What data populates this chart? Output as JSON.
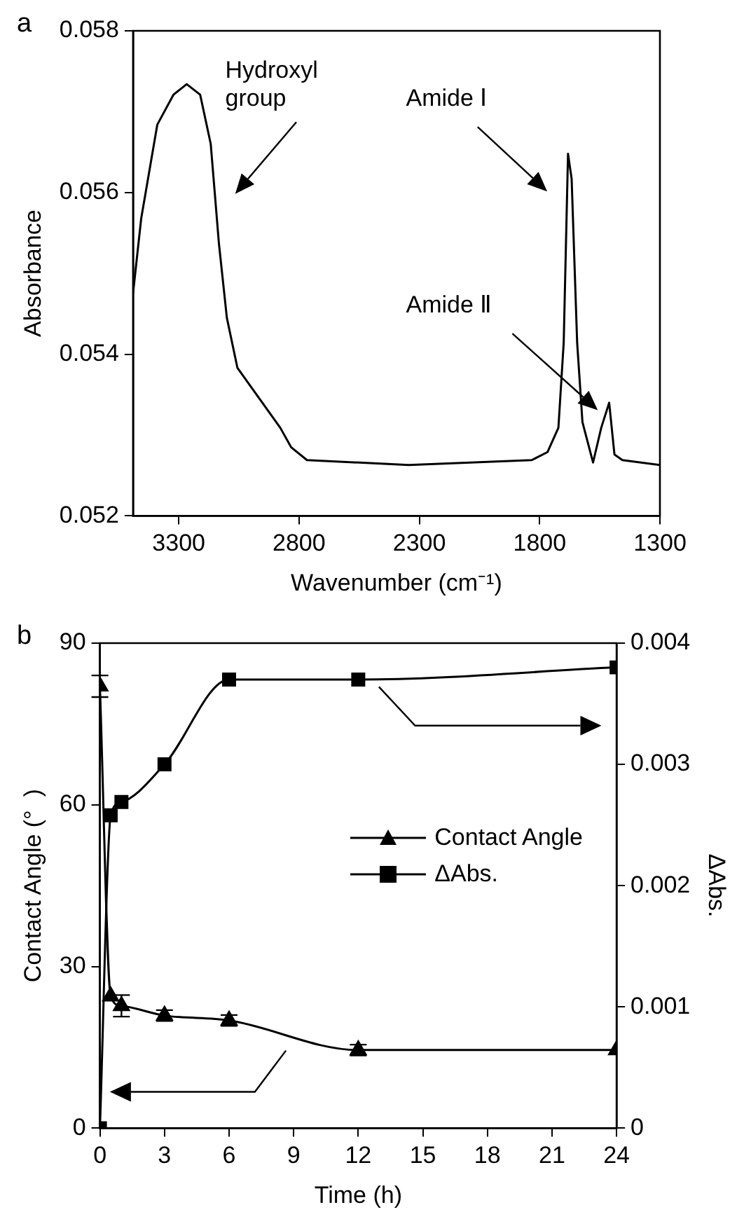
{
  "chart_data": [
    {
      "type": "line",
      "title": "a",
      "xlabel": "Wavenumber (cm⁻¹)",
      "ylabel": "Absorbance",
      "xlim": [
        3490,
        1300
      ],
      "xticks": [
        3300,
        2800,
        2300,
        1800,
        1300
      ],
      "ylim": [
        0.052,
        0.058
      ],
      "yticks": [
        0.052,
        0.054,
        0.056,
        0.058
      ],
      "grid": false,
      "legend": false,
      "x": [
        3490,
        3456,
        3389,
        3322,
        3267,
        3211,
        3167,
        3133,
        3100,
        3056,
        2967,
        2878,
        2833,
        2767,
        2344,
        1833,
        1767,
        1722,
        1700,
        1682,
        1667,
        1644,
        1622,
        1578,
        1544,
        1511,
        1489,
        1456,
        1300
      ],
      "series": [
        {
          "color": "#000000",
          "values": [
            0.05475,
            0.05568,
            0.05684,
            0.05721,
            0.05734,
            0.05721,
            0.0566,
            0.05537,
            0.05445,
            0.05383,
            0.05346,
            0.05309,
            0.05285,
            0.05269,
            0.05263,
            0.05269,
            0.05279,
            0.05309,
            0.05414,
            0.05648,
            0.05617,
            0.05414,
            0.05316,
            0.05266,
            0.05309,
            0.0534,
            0.05276,
            0.05269,
            0.05263
          ]
        }
      ],
      "annotations": [
        "Hydroxyl group",
        "Amide Ⅰ",
        "Amide Ⅱ"
      ]
    },
    {
      "type": "line",
      "title": "b",
      "xlabel": "Time (h)",
      "ylabel": "Contact Angle (°  )",
      "y2label": "ΔAbs.",
      "xlim": [
        0,
        24
      ],
      "xticks": [
        0,
        3,
        6,
        9,
        12,
        15,
        18,
        21,
        24
      ],
      "ylim": [
        0,
        90
      ],
      "yticks": [
        0,
        30,
        60,
        90
      ],
      "y2lim": [
        0,
        0.004
      ],
      "y2ticks": [
        0,
        0.001,
        0.002,
        0.003,
        0.004
      ],
      "grid": false,
      "legend": "right",
      "x": [
        0,
        0.5,
        1,
        3,
        6,
        12,
        24
      ],
      "series": [
        {
          "name": "Contact Angle",
          "color": "#000000",
          "marker": "triangle",
          "values": [
            82,
            24.5,
            22.7,
            20.9,
            20,
            14.5,
            14.5
          ],
          "errors": [
            2,
            null,
            2,
            1,
            1,
            1,
            null
          ]
        },
        {
          "name": "ΔAbs.",
          "color": "#000000",
          "marker": "square",
          "axis": "y2",
          "values": [
            0,
            0.00258,
            0.00269,
            0.003,
            0.0037,
            0.0037,
            0.0038
          ]
        }
      ]
    }
  ]
}
